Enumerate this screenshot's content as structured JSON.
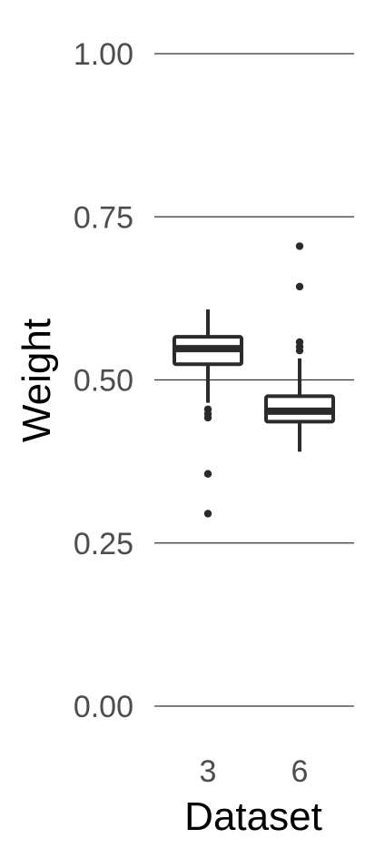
{
  "chart_data": {
    "type": "boxplot",
    "title": "",
    "xlabel": "Dataset",
    "ylabel": "Weight",
    "ylim": [
      -0.06,
      1.065
    ],
    "yticks": [
      0.0,
      0.25,
      0.5,
      0.75,
      1.0
    ],
    "ytick_labels": [
      "0.00",
      "0.25",
      "0.50",
      "0.75",
      "1.00"
    ],
    "grid": "horizontal-major",
    "categories": [
      "3",
      "6"
    ],
    "boxes": [
      {
        "category": "3",
        "whisker_low": 0.465,
        "q1": 0.524,
        "median": 0.548,
        "q3": 0.566,
        "whisker_high": 0.608,
        "outliers": [
          0.455,
          0.448,
          0.442,
          0.356,
          0.295
        ]
      },
      {
        "category": "6",
        "whisker_low": 0.39,
        "q1": 0.436,
        "median": 0.452,
        "q3": 0.475,
        "whisker_high": 0.533,
        "outliers": [
          0.705,
          0.643,
          0.558,
          0.551,
          0.545
        ]
      }
    ],
    "colors": {
      "grid": "#333333",
      "box": "#2b2b2b",
      "box_fill": "#ffffff",
      "tick_text": "#4d4d4d",
      "title_text": "#000000"
    }
  }
}
